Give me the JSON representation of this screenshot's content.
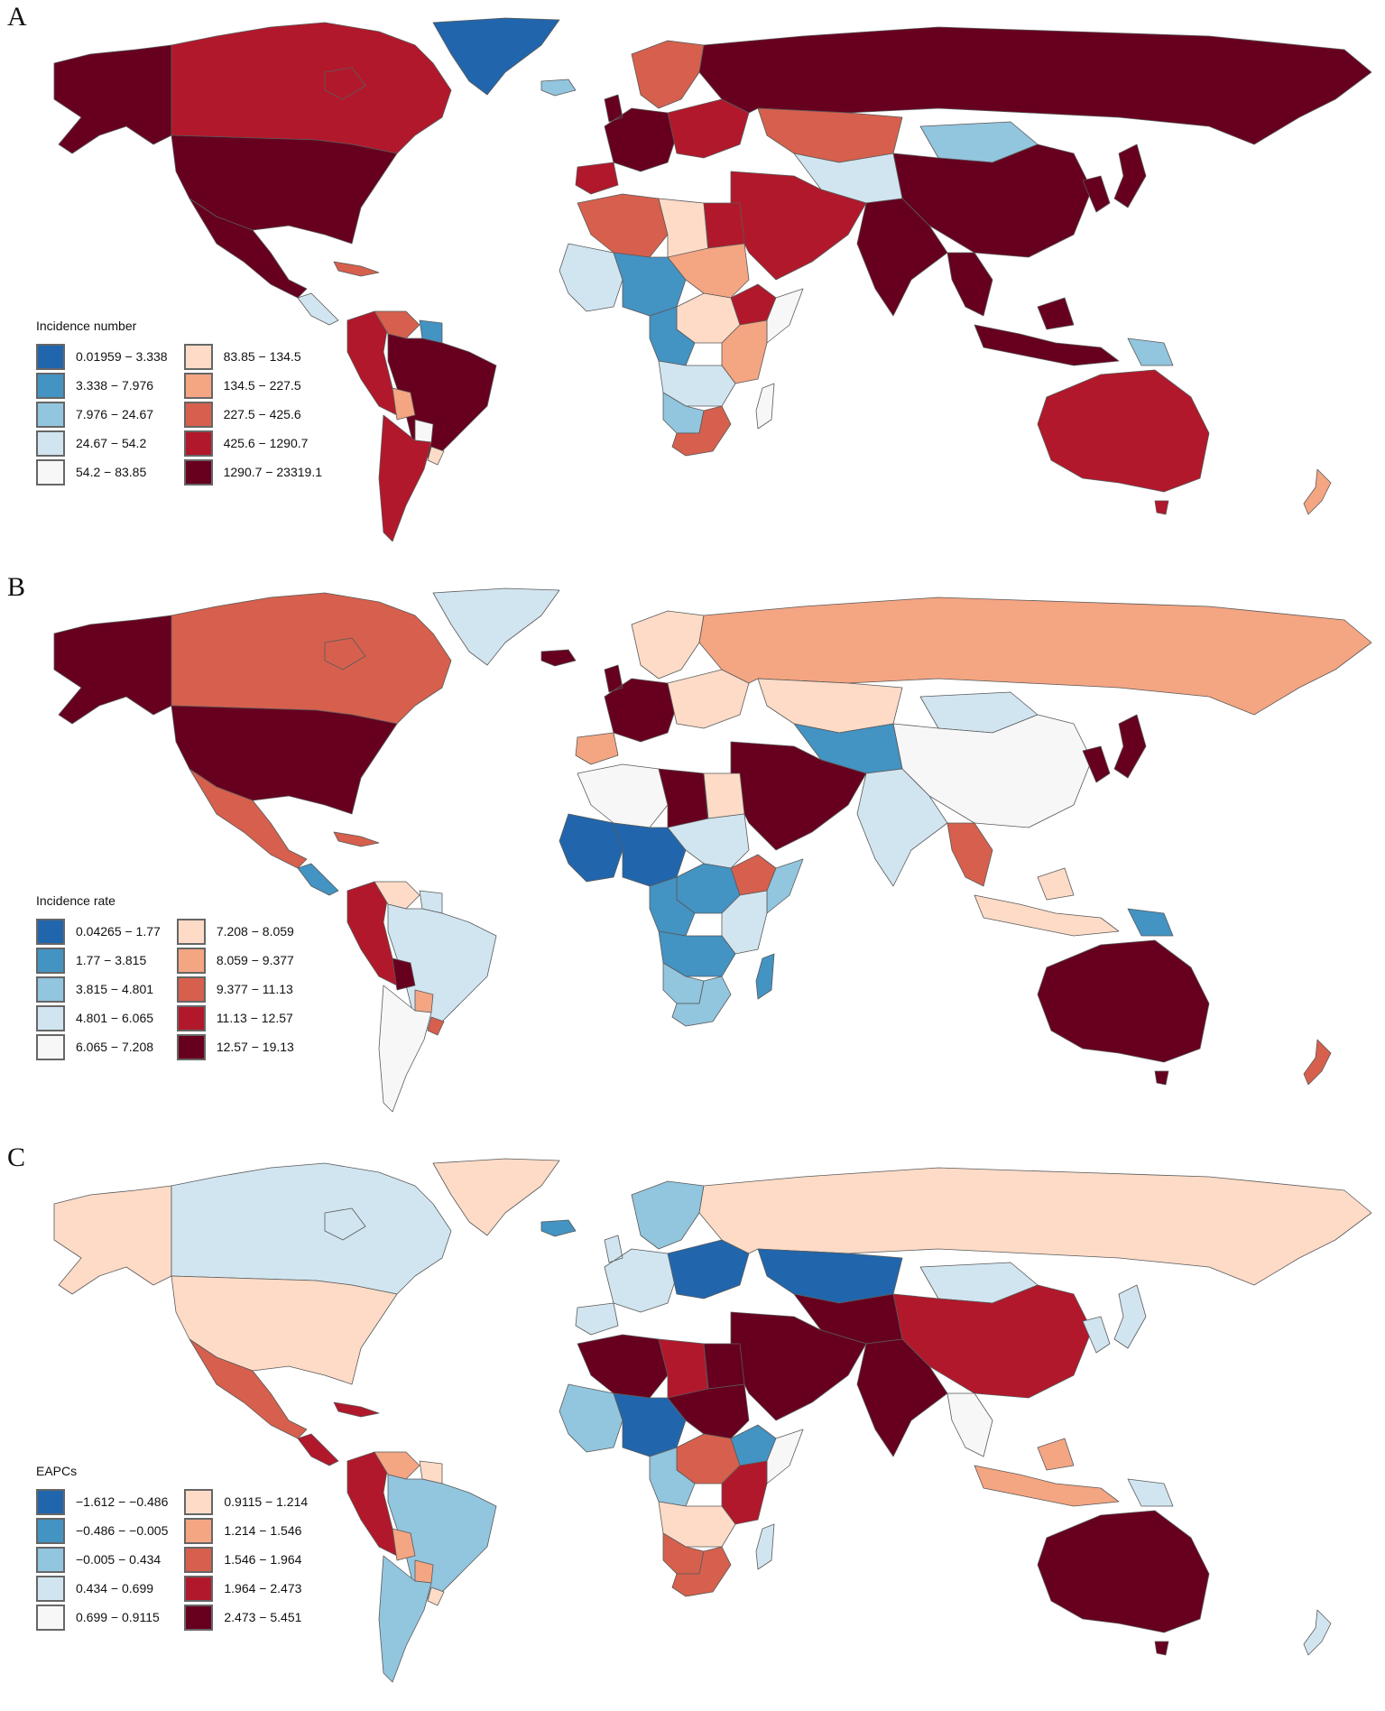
{
  "figure": {
    "panels": [
      {
        "letter": "A",
        "legend": {
          "title": "Incidence number",
          "bins": [
            {
              "label": "0.01959 − 3.338",
              "color": "#2166ac"
            },
            {
              "label": "3.338 − 7.976",
              "color": "#4393c3"
            },
            {
              "label": "7.976 − 24.67",
              "color": "#92c5de"
            },
            {
              "label": "24.67 − 54.2",
              "color": "#d1e5f0"
            },
            {
              "label": "54.2 − 83.85",
              "color": "#f7f7f7"
            },
            {
              "label": "83.85 − 134.5",
              "color": "#fddbc7"
            },
            {
              "label": "134.5 − 227.5",
              "color": "#f4a582"
            },
            {
              "label": "227.5 − 425.6",
              "color": "#d6604d"
            },
            {
              "label": "425.6 − 1290.7",
              "color": "#b2182b"
            },
            {
              "label": "1290.7 − 23319.1",
              "color": "#67001f"
            }
          ]
        },
        "regions": {
          "alaska": "#67001f",
          "canada": "#b2182b",
          "usa": "#67001f",
          "mexico": "#67001f",
          "central_america": "#d1e5f0",
          "caribbean": "#d6604d",
          "greenland": "#2166ac",
          "iceland": "#92c5de",
          "colombia_peru": "#b2182b",
          "venezuela": "#d6604d",
          "guianas": "#4393c3",
          "brazil": "#67001f",
          "bolivia": "#f4a582",
          "paraguay": "#f7f7f7",
          "argentina_chile": "#b2182b",
          "uruguay": "#fddbc7",
          "w_europe": "#67001f",
          "scandinavia": "#d6604d",
          "e_europe": "#b2182b",
          "iberia": "#b2182b",
          "russia": "#67001f",
          "kazakhstan": "#d6604d",
          "mongolia": "#92c5de",
          "china": "#67001f",
          "central_asia": "#d1e5f0",
          "middle_east": "#b2182b",
          "india": "#67001f",
          "se_asia": "#67001f",
          "japan_korea": "#67001f",
          "indonesia": "#67001f",
          "png": "#92c5de",
          "australia": "#b2182b",
          "new_zealand": "#f4a582",
          "n_africa": "#d6604d",
          "libya": "#fddbc7",
          "egypt": "#b2182b",
          "w_africa": "#d1e5f0",
          "sahel": "#4393c3",
          "sudan": "#f4a582",
          "ethiopia": "#b2182b",
          "horn": "#f7f7f7",
          "central_africa": "#fddbc7",
          "congo": "#4393c3",
          "east_africa": "#f4a582",
          "s_central_africa": "#d1e5f0",
          "southern_africa": "#92c5de",
          "south_africa": "#d6604d",
          "madagascar": "#f7f7f7"
        }
      },
      {
        "letter": "B",
        "legend": {
          "title": "Incidence rate",
          "bins": [
            {
              "label": "0.04265 − 1.77",
              "color": "#2166ac"
            },
            {
              "label": "1.77 − 3.815",
              "color": "#4393c3"
            },
            {
              "label": "3.815 − 4.801",
              "color": "#92c5de"
            },
            {
              "label": "4.801 − 6.065",
              "color": "#d1e5f0"
            },
            {
              "label": "6.065 − 7.208",
              "color": "#f7f7f7"
            },
            {
              "label": "7.208 − 8.059",
              "color": "#fddbc7"
            },
            {
              "label": "8.059 − 9.377",
              "color": "#f4a582"
            },
            {
              "label": "9.377 − 11.13",
              "color": "#d6604d"
            },
            {
              "label": "11.13 − 12.57",
              "color": "#b2182b"
            },
            {
              "label": "12.57 − 19.13",
              "color": "#67001f"
            }
          ]
        },
        "regions": {
          "alaska": "#67001f",
          "canada": "#d6604d",
          "usa": "#67001f",
          "mexico": "#d6604d",
          "central_america": "#4393c3",
          "caribbean": "#d6604d",
          "greenland": "#d1e5f0",
          "iceland": "#67001f",
          "colombia_peru": "#b2182b",
          "venezuela": "#fddbc7",
          "guianas": "#d1e5f0",
          "brazil": "#d1e5f0",
          "bolivia": "#67001f",
          "paraguay": "#f4a582",
          "argentina_chile": "#f7f7f7",
          "uruguay": "#d6604d",
          "w_europe": "#67001f",
          "scandinavia": "#fddbc7",
          "e_europe": "#fddbc7",
          "iberia": "#f4a582",
          "russia": "#f4a582",
          "kazakhstan": "#fddbc7",
          "mongolia": "#d1e5f0",
          "china": "#f7f7f7",
          "central_asia": "#4393c3",
          "middle_east": "#67001f",
          "india": "#d1e5f0",
          "se_asia": "#d6604d",
          "japan_korea": "#67001f",
          "indonesia": "#fddbc7",
          "png": "#4393c3",
          "australia": "#67001f",
          "new_zealand": "#d6604d",
          "n_africa": "#f7f7f7",
          "libya": "#67001f",
          "egypt": "#fddbc7",
          "w_africa": "#2166ac",
          "sahel": "#2166ac",
          "sudan": "#d1e5f0",
          "ethiopia": "#d6604d",
          "horn": "#92c5de",
          "central_africa": "#4393c3",
          "congo": "#4393c3",
          "east_africa": "#d1e5f0",
          "s_central_africa": "#4393c3",
          "southern_africa": "#92c5de",
          "south_africa": "#92c5de",
          "madagascar": "#4393c3"
        }
      },
      {
        "letter": "C",
        "legend": {
          "title": "EAPCs",
          "bins": [
            {
              "label": "−1.612 − −0.486",
              "color": "#2166ac"
            },
            {
              "label": "−0.486 − −0.005",
              "color": "#4393c3"
            },
            {
              "label": "−0.005 − 0.434",
              "color": "#92c5de"
            },
            {
              "label": "0.434 − 0.699",
              "color": "#d1e5f0"
            },
            {
              "label": "0.699 − 0.9115",
              "color": "#f7f7f7"
            },
            {
              "label": "0.9115 − 1.214",
              "color": "#fddbc7"
            },
            {
              "label": "1.214 − 1.546",
              "color": "#f4a582"
            },
            {
              "label": "1.546 − 1.964",
              "color": "#d6604d"
            },
            {
              "label": "1.964 − 2.473",
              "color": "#b2182b"
            },
            {
              "label": "2.473 − 5.451",
              "color": "#67001f"
            }
          ]
        },
        "regions": {
          "alaska": "#fddbc7",
          "canada": "#d1e5f0",
          "usa": "#fddbc7",
          "mexico": "#d6604d",
          "central_america": "#b2182b",
          "caribbean": "#b2182b",
          "greenland": "#fddbc7",
          "iceland": "#4393c3",
          "colombia_peru": "#b2182b",
          "venezuela": "#f4a582",
          "guianas": "#fddbc7",
          "brazil": "#92c5de",
          "bolivia": "#f4a582",
          "paraguay": "#f4a582",
          "argentina_chile": "#92c5de",
          "uruguay": "#fddbc7",
          "w_europe": "#d1e5f0",
          "scandinavia": "#92c5de",
          "e_europe": "#2166ac",
          "iberia": "#d1e5f0",
          "russia": "#fddbc7",
          "kazakhstan": "#2166ac",
          "mongolia": "#d1e5f0",
          "china": "#b2182b",
          "central_asia": "#67001f",
          "middle_east": "#67001f",
          "india": "#67001f",
          "se_asia": "#f7f7f7",
          "japan_korea": "#d1e5f0",
          "indonesia": "#f4a582",
          "png": "#d1e5f0",
          "australia": "#67001f",
          "new_zealand": "#d1e5f0",
          "n_africa": "#67001f",
          "libya": "#b2182b",
          "egypt": "#67001f",
          "w_africa": "#92c5de",
          "sahel": "#2166ac",
          "sudan": "#67001f",
          "ethiopia": "#4393c3",
          "horn": "#f7f7f7",
          "central_africa": "#d6604d",
          "congo": "#92c5de",
          "east_africa": "#b2182b",
          "s_central_africa": "#fddbc7",
          "southern_africa": "#d6604d",
          "south_africa": "#d6604d",
          "madagascar": "#d1e5f0"
        }
      }
    ]
  },
  "chart_data": [
    {
      "type": "heatmap",
      "subtype": "choropleth",
      "title": "A",
      "legend_title": "Incidence number",
      "legend_position": "bottom-left",
      "bins": [
        "0.01959 - 3.338",
        "3.338 - 7.976",
        "7.976 - 24.67",
        "24.67 - 54.2",
        "54.2 - 83.85",
        "83.85 - 134.5",
        "134.5 - 227.5",
        "227.5 - 425.6",
        "425.6 - 1290.7",
        "1290.7 - 23319.1"
      ],
      "colors": [
        "#2166ac",
        "#4393c3",
        "#92c5de",
        "#d1e5f0",
        "#f7f7f7",
        "#fddbc7",
        "#f4a582",
        "#d6604d",
        "#b2182b",
        "#67001f"
      ]
    },
    {
      "type": "heatmap",
      "subtype": "choropleth",
      "title": "B",
      "legend_title": "Incidence rate",
      "legend_position": "bottom-left",
      "bins": [
        "0.04265 - 1.77",
        "1.77 - 3.815",
        "3.815 - 4.801",
        "4.801 - 6.065",
        "6.065 - 7.208",
        "7.208 - 8.059",
        "8.059 - 9.377",
        "9.377 - 11.13",
        "11.13 - 12.57",
        "12.57 - 19.13"
      ],
      "colors": [
        "#2166ac",
        "#4393c3",
        "#92c5de",
        "#d1e5f0",
        "#f7f7f7",
        "#fddbc7",
        "#f4a582",
        "#d6604d",
        "#b2182b",
        "#67001f"
      ]
    },
    {
      "type": "heatmap",
      "subtype": "choropleth",
      "title": "C",
      "legend_title": "EAPCs",
      "legend_position": "bottom-left",
      "bins": [
        "-1.612 - -0.486",
        "-0.486 - -0.005",
        "-0.005 - 0.434",
        "0.434 - 0.699",
        "0.699 - 0.9115",
        "0.9115 - 1.214",
        "1.214 - 1.546",
        "1.546 - 1.964",
        "1.964 - 2.473",
        "2.473 - 5.451"
      ],
      "colors": [
        "#2166ac",
        "#4393c3",
        "#92c5de",
        "#d1e5f0",
        "#f7f7f7",
        "#fddbc7",
        "#f4a582",
        "#d6604d",
        "#b2182b",
        "#67001f"
      ]
    }
  ]
}
